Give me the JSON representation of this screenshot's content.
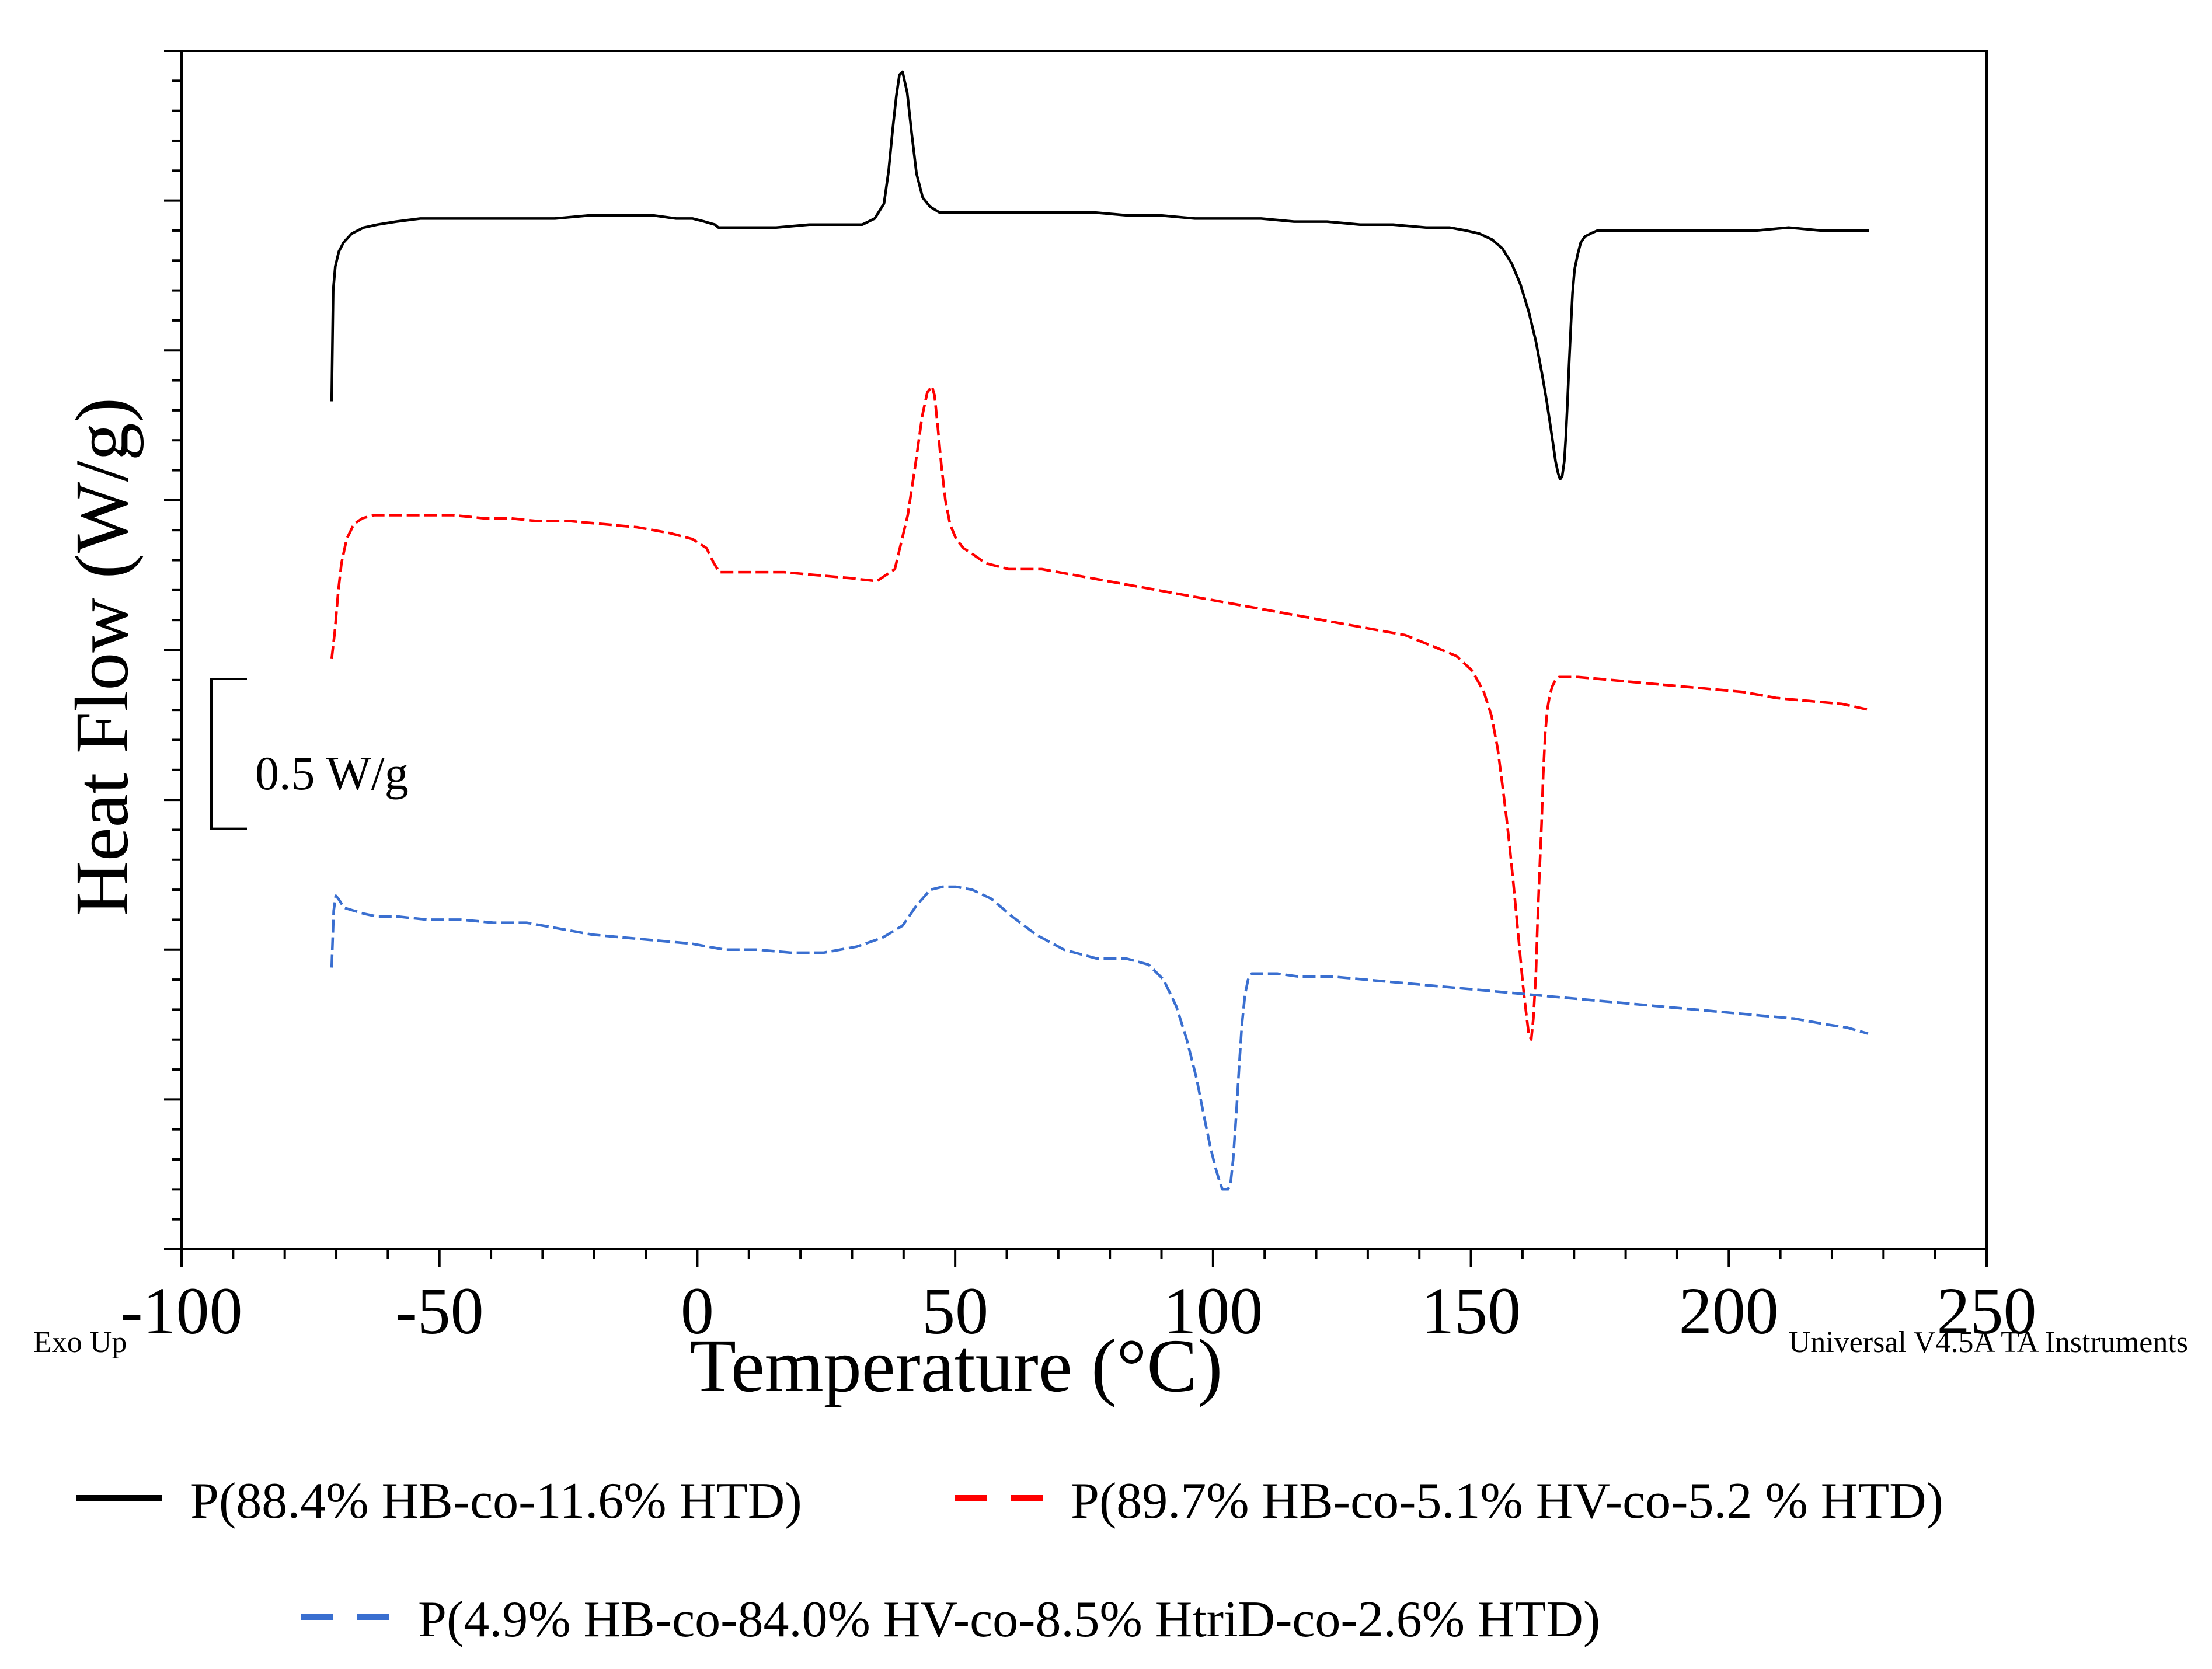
{
  "chart_data": {
    "type": "line",
    "xlabel": "Temperature (°C)",
    "ylabel": "Heat Flow (W/g)",
    "xlim": [
      -100,
      250
    ],
    "x_ticks": [
      "-100",
      "-50",
      "0",
      "50",
      "100",
      "150",
      "200",
      "250"
    ],
    "y_ticks_labeled": false,
    "y_minor_tick_spacing": 0.1,
    "y_major_tick_spacing": 0.5,
    "ylim": [
      -2.5,
      1.5
    ],
    "grid": false,
    "scale_bar_label": "0.5 W/g",
    "scale_bar_value": 0.5,
    "exo_label": "Exo Up",
    "software_label": "Universal V4.5A TA Instruments",
    "legend_position": "bottom",
    "series": [
      {
        "name": "P(88.4% HB-co-11.6% HTD)",
        "color": "#000000",
        "dash": "solid",
        "x": [
          -70.9,
          -70.6,
          -70.2,
          -69.5,
          -68.6,
          -67.0,
          -64.7,
          -62.0,
          -58.4,
          -53.7,
          -47.6,
          -40.6,
          -34.2,
          -27.6,
          -21.2,
          -14.8,
          -8.3,
          -4.1,
          -0.9,
          1.4,
          3.4,
          4.1,
          5.2,
          8.8,
          15.3,
          21.7,
          28.1,
          32.0,
          34.4,
          36.2,
          37.1,
          37.9,
          38.6,
          39.2,
          39.8,
          40.7,
          41.6,
          42.5,
          43.7,
          45.1,
          47.0,
          49.7,
          55.9,
          63.9,
          70.9,
          77.3,
          83.7,
          90.1,
          96.5,
          102.9,
          109.3,
          115.7,
          122.1,
          128.5,
          134.9,
          141.3,
          145.9,
          149.1,
          151.6,
          154.1,
          156.1,
          157.9,
          159.6,
          161.2,
          162.6,
          163.8,
          164.7,
          165.4,
          166.0,
          166.4,
          166.9,
          167.3,
          167.7,
          168.1,
          168.4,
          168.7,
          169.0,
          169.4,
          169.7,
          170.1,
          170.7,
          171.3,
          172.1,
          173.2,
          174.5,
          176.2,
          179.5,
          185.9,
          192.3,
          198.8,
          205.2,
          211.6,
          218.0,
          224.4,
          227.2
        ],
        "y": [
          0.33,
          0.7,
          0.78,
          0.83,
          0.86,
          0.89,
          0.91,
          0.92,
          0.93,
          0.94,
          0.94,
          0.94,
          0.94,
          0.94,
          0.95,
          0.95,
          0.95,
          0.94,
          0.94,
          0.93,
          0.92,
          0.91,
          0.91,
          0.91,
          0.91,
          0.92,
          0.92,
          0.92,
          0.94,
          0.99,
          1.1,
          1.24,
          1.35,
          1.42,
          1.43,
          1.36,
          1.22,
          1.09,
          1.01,
          0.98,
          0.96,
          0.96,
          0.96,
          0.96,
          0.96,
          0.96,
          0.95,
          0.95,
          0.94,
          0.94,
          0.94,
          0.93,
          0.93,
          0.92,
          0.92,
          0.91,
          0.91,
          0.9,
          0.89,
          0.87,
          0.84,
          0.79,
          0.72,
          0.63,
          0.53,
          0.42,
          0.33,
          0.25,
          0.18,
          0.13,
          0.09,
          0.07,
          0.08,
          0.13,
          0.21,
          0.32,
          0.44,
          0.59,
          0.69,
          0.77,
          0.82,
          0.86,
          0.88,
          0.89,
          0.9,
          0.9,
          0.9,
          0.9,
          0.9,
          0.9,
          0.9,
          0.91,
          0.9,
          0.9,
          0.9
        ]
      },
      {
        "name": "P(89.7% HB-co-5.1% HV-co-5.2 % HTD)",
        "color": "#ff0000",
        "dash": "dashed",
        "x": [
          -70.9,
          -70.3,
          -69.6,
          -69.0,
          -68.0,
          -66.6,
          -64.9,
          -62.6,
          -58.9,
          -53.4,
          -47.4,
          -41.5,
          -36.4,
          -30.9,
          -24.5,
          -18.1,
          -11.7,
          -5.3,
          -0.9,
          1.8,
          3.2,
          4.3,
          6.3,
          10.4,
          16.8,
          23.2,
          29.6,
          34.8,
          38.3,
          40.8,
          42.3,
          43.6,
          44.6,
          45.5,
          46.0,
          46.6,
          47.3,
          48.1,
          49.0,
          50.2,
          51.6,
          53.4,
          55.9,
          60.4,
          66.8,
          73.2,
          79.6,
          86.0,
          92.4,
          98.8,
          105.2,
          111.6,
          118.0,
          124.4,
          130.8,
          137.2,
          143.0,
          147.2,
          150.3,
          152.5,
          154.0,
          155.2,
          156.1,
          156.9,
          157.6,
          158.3,
          158.9,
          159.5,
          160.1,
          160.7,
          161.2,
          161.7,
          162.1,
          162.6,
          162.9,
          163.3,
          163.7,
          164.0,
          164.4,
          164.8,
          165.3,
          165.8,
          166.4,
          167.1,
          168.2,
          170.8,
          177.2,
          183.6,
          190.0,
          196.4,
          202.8,
          209.2,
          215.6,
          222.0,
          227.3
        ],
        "y": [
          -0.53,
          -0.44,
          -0.3,
          -0.21,
          -0.13,
          -0.08,
          -0.06,
          -0.05,
          -0.05,
          -0.05,
          -0.05,
          -0.06,
          -0.06,
          -0.07,
          -0.07,
          -0.08,
          -0.09,
          -0.11,
          -0.13,
          -0.16,
          -0.21,
          -0.24,
          -0.24,
          -0.24,
          -0.24,
          -0.25,
          -0.26,
          -0.27,
          -0.23,
          -0.05,
          0.12,
          0.28,
          0.36,
          0.38,
          0.35,
          0.25,
          0.12,
          0.0,
          -0.08,
          -0.13,
          -0.16,
          -0.18,
          -0.21,
          -0.23,
          -0.23,
          -0.25,
          -0.27,
          -0.29,
          -0.31,
          -0.33,
          -0.35,
          -0.37,
          -0.39,
          -0.41,
          -0.43,
          -0.45,
          -0.49,
          -0.52,
          -0.57,
          -0.64,
          -0.72,
          -0.83,
          -0.95,
          -1.06,
          -1.17,
          -1.29,
          -1.4,
          -1.51,
          -1.62,
          -1.71,
          -1.78,
          -1.8,
          -1.73,
          -1.58,
          -1.42,
          -1.24,
          -1.08,
          -0.92,
          -0.78,
          -0.7,
          -0.65,
          -0.62,
          -0.6,
          -0.59,
          -0.59,
          -0.59,
          -0.6,
          -0.61,
          -0.62,
          -0.63,
          -0.64,
          -0.66,
          -0.67,
          -0.68,
          -0.7
        ]
      },
      {
        "name": "P(4.9% HB-co-84.0% HV-co-8.5% HtriD-co-2.6% HTD)",
        "color": "#3a6fd0",
        "dash": "dashed",
        "x": [
          -70.9,
          -70.5,
          -70.1,
          -69.6,
          -68.5,
          -66.6,
          -64.6,
          -61.9,
          -57.8,
          -52.3,
          -45.9,
          -39.5,
          -33.1,
          -26.7,
          -20.3,
          -13.9,
          -7.5,
          -1.1,
          5.3,
          11.7,
          18.1,
          24.5,
          30.9,
          35.9,
          39.8,
          42.6,
          45.2,
          47.6,
          50.1,
          53.3,
          57.0,
          61.1,
          65.7,
          71.1,
          77.5,
          83.2,
          87.5,
          90.4,
          92.9,
          94.9,
          96.8,
          98.3,
          99.5,
          100.5,
          101.2,
          101.8,
          102.4,
          102.9,
          103.4,
          103.9,
          104.5,
          105.1,
          105.6,
          106.2,
          106.8,
          107.5,
          108.5,
          110.0,
          112.5,
          116.6,
          123.1,
          129.5,
          135.9,
          142.3,
          148.7,
          155.1,
          161.5,
          167.9,
          174.3,
          180.7,
          187.1,
          193.5,
          199.9,
          206.3,
          212.7,
          219.1,
          222.9,
          227.0
        ],
        "y": [
          -1.56,
          -1.37,
          -1.32,
          -1.33,
          -1.36,
          -1.37,
          -1.38,
          -1.39,
          -1.39,
          -1.4,
          -1.4,
          -1.41,
          -1.41,
          -1.43,
          -1.45,
          -1.46,
          -1.47,
          -1.48,
          -1.5,
          -1.5,
          -1.51,
          -1.51,
          -1.49,
          -1.46,
          -1.42,
          -1.35,
          -1.3,
          -1.29,
          -1.29,
          -1.3,
          -1.33,
          -1.39,
          -1.45,
          -1.5,
          -1.53,
          -1.53,
          -1.55,
          -1.6,
          -1.69,
          -1.8,
          -1.93,
          -2.06,
          -2.16,
          -2.23,
          -2.27,
          -2.3,
          -2.3,
          -2.3,
          -2.28,
          -2.2,
          -2.05,
          -1.88,
          -1.75,
          -1.65,
          -1.6,
          -1.58,
          -1.58,
          -1.58,
          -1.58,
          -1.59,
          -1.59,
          -1.6,
          -1.61,
          -1.62,
          -1.63,
          -1.64,
          -1.65,
          -1.66,
          -1.67,
          -1.68,
          -1.69,
          -1.7,
          -1.71,
          -1.72,
          -1.73,
          -1.75,
          -1.76,
          -1.78
        ]
      }
    ]
  }
}
